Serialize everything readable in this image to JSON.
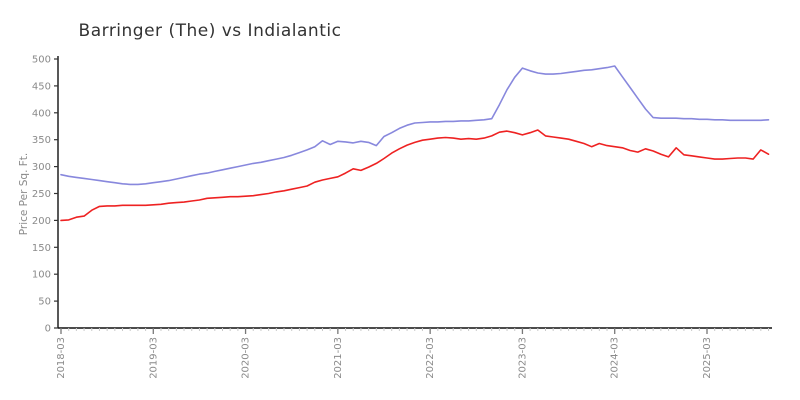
{
  "title": "Barringer (The) vs Indialantic",
  "colors": {
    "axis": "#111111",
    "major_tick": "#777777",
    "minor_tick": "#c9c9c9",
    "tick_label": "#8a8a8a",
    "title_text": "#333333",
    "series_blue": "#8888dd",
    "series_red": "#ee2222"
  },
  "chart_data": {
    "type": "line",
    "title": "Barringer (The) vs Indialantic",
    "xlabel": "",
    "ylabel": "Price Per Sq. Ft.",
    "ylim": [
      0,
      500
    ],
    "ytick_step": 50,
    "yticks": [
      0,
      50,
      100,
      150,
      200,
      250,
      300,
      350,
      400,
      450,
      500
    ],
    "x_major_tick_labels": [
      "2018-03",
      "2019-03",
      "2020-03",
      "2021-03",
      "2022-03",
      "2023-03",
      "2024-03",
      "2025-03"
    ],
    "grid": false,
    "legend_position": "none",
    "x": [
      "2018-03",
      "2018-04",
      "2018-05",
      "2018-06",
      "2018-07",
      "2018-08",
      "2018-09",
      "2018-10",
      "2018-11",
      "2018-12",
      "2019-01",
      "2019-02",
      "2019-03",
      "2019-04",
      "2019-05",
      "2019-06",
      "2019-07",
      "2019-08",
      "2019-09",
      "2019-10",
      "2019-11",
      "2019-12",
      "2020-01",
      "2020-02",
      "2020-03",
      "2020-04",
      "2020-05",
      "2020-06",
      "2020-07",
      "2020-08",
      "2020-09",
      "2020-10",
      "2020-11",
      "2020-12",
      "2021-01",
      "2021-02",
      "2021-03",
      "2021-04",
      "2021-05",
      "2021-06",
      "2021-07",
      "2021-08",
      "2021-09",
      "2021-10",
      "2021-11",
      "2021-12",
      "2022-01",
      "2022-02",
      "2022-03",
      "2022-04",
      "2022-05",
      "2022-06",
      "2022-07",
      "2022-08",
      "2022-09",
      "2022-10",
      "2022-11",
      "2022-12",
      "2023-01",
      "2023-02",
      "2023-03",
      "2023-04",
      "2023-05",
      "2023-06",
      "2023-07",
      "2023-08",
      "2023-09",
      "2023-10",
      "2023-11",
      "2023-12",
      "2024-01",
      "2024-02",
      "2024-03",
      "2024-04",
      "2024-05",
      "2024-06",
      "2024-07",
      "2024-08",
      "2024-09",
      "2024-10",
      "2024-11",
      "2024-12",
      "2025-01",
      "2025-02",
      "2025-03",
      "2025-04",
      "2025-05",
      "2025-06",
      "2025-07",
      "2025-08",
      "2025-09",
      "2025-10",
      "2025-11"
    ],
    "series": [
      {
        "name": "Barringer (The)",
        "color": "#8888dd",
        "values": [
          285,
          282,
          280,
          278,
          276,
          274,
          272,
          270,
          268,
          267,
          267,
          268,
          270,
          272,
          274,
          277,
          280,
          283,
          286,
          288,
          291,
          294,
          297,
          300,
          303,
          306,
          308,
          311,
          314,
          317,
          321,
          326,
          331,
          337,
          348,
          341,
          347,
          346,
          344,
          347,
          345,
          339,
          356,
          363,
          371,
          377,
          381,
          382,
          383,
          383,
          384,
          384,
          385,
          385,
          386,
          387,
          389,
          415,
          443,
          466,
          483,
          478,
          474,
          472,
          472,
          473,
          475,
          477,
          479,
          480,
          482,
          484,
          487,
          467,
          447,
          427,
          407,
          391,
          390,
          390,
          390,
          389,
          389,
          388,
          388,
          387,
          387,
          386,
          386,
          386,
          386,
          386,
          387
        ]
      },
      {
        "name": "Indialantic",
        "color": "#ee2222",
        "values": [
          200,
          201,
          206,
          208,
          219,
          226,
          227,
          227,
          228,
          228,
          228,
          228,
          229,
          230,
          232,
          233,
          234,
          236,
          238,
          241,
          242,
          243,
          244,
          244,
          245,
          246,
          248,
          250,
          253,
          255,
          258,
          261,
          264,
          271,
          275,
          278,
          281,
          288,
          296,
          293,
          299,
          306,
          315,
          325,
          333,
          340,
          345,
          349,
          351,
          353,
          354,
          353,
          351,
          352,
          351,
          353,
          357,
          364,
          366,
          363,
          359,
          363,
          368,
          357,
          355,
          353,
          351,
          347,
          343,
          337,
          343,
          339,
          337,
          335,
          330,
          327,
          333,
          329,
          323,
          318,
          335,
          322,
          320,
          318,
          316,
          314,
          314,
          315,
          316,
          316,
          314,
          331,
          323
        ]
      }
    ]
  }
}
